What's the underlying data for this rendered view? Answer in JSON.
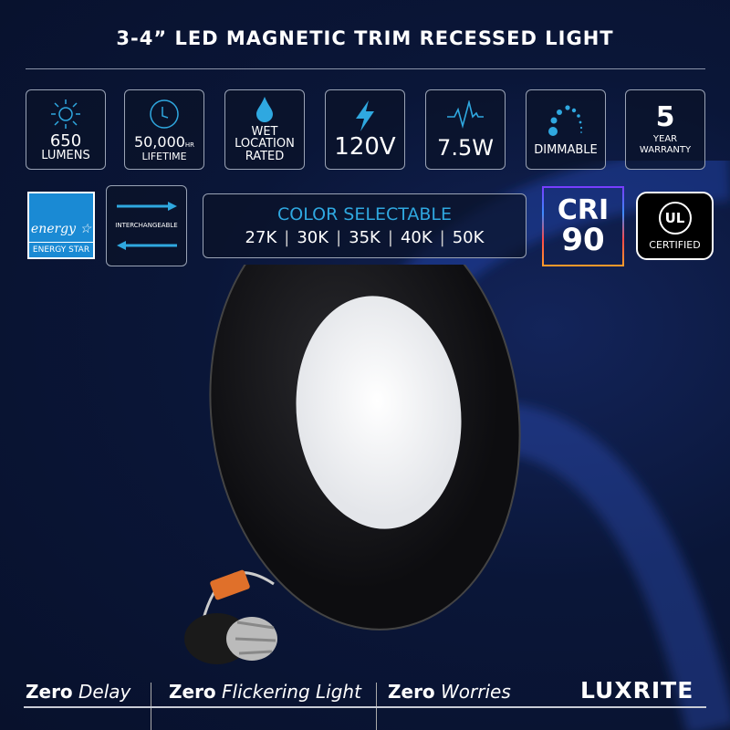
{
  "title": "3-4” LED MAGNETIC TRIM RECESSED LIGHT",
  "features": [
    {
      "icon": "sun-icon",
      "value": "650",
      "label": "LUMENS"
    },
    {
      "icon": "clock-icon",
      "value": "50,000",
      "suffix": "HR",
      "label": "LIFETIME"
    },
    {
      "icon": "water-drop-icon",
      "lines": [
        "WET",
        "LOCATION",
        "RATED"
      ]
    },
    {
      "icon": "lightning-icon",
      "value": "120V"
    },
    {
      "icon": "waveform-icon",
      "value": "7.5W"
    },
    {
      "icon": "dimmer-dots-icon",
      "label": "DIMMABLE"
    },
    {
      "value": "5",
      "lines": [
        "YEAR",
        "WARRANTY"
      ]
    }
  ],
  "energy_star": {
    "script": "energy",
    "label": "ENERGY STAR"
  },
  "interchangeable": "INTERCHANGEABLE",
  "color_selectable": {
    "title": "COLOR SELECTABLE",
    "options": [
      "27K",
      "30K",
      "35K",
      "40K",
      "50K"
    ]
  },
  "cri": {
    "label": "CRI",
    "value": "90"
  },
  "ul": {
    "mark": "UL",
    "label": "CERTIFIED"
  },
  "taglines": [
    {
      "bold": "Zero",
      "rest": "Delay"
    },
    {
      "bold": "Zero",
      "rest": "Flickering Light"
    },
    {
      "bold": "Zero",
      "rest": "Worries"
    }
  ],
  "brand": "LUXRITE",
  "colors": {
    "accent": "#2fa8e0",
    "background": "#0a1638"
  }
}
